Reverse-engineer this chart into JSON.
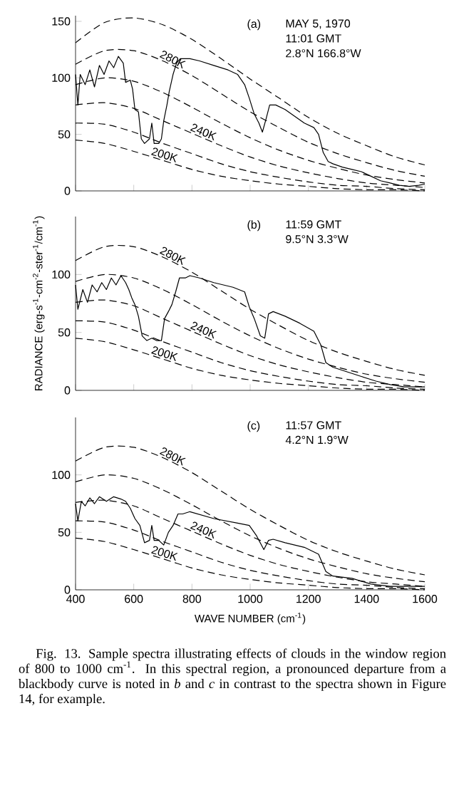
{
  "chart_data": [
    {
      "type": "line",
      "xlim": [
        400,
        1600
      ],
      "xticks": [
        400,
        600,
        800,
        1000,
        1200,
        1400,
        1600
      ],
      "ylim": [
        0,
        155
      ],
      "yticks": [
        0,
        50,
        100,
        150
      ],
      "tick_labels": "y",
      "annotations": [
        "(a)",
        "MAY 5, 1970",
        "11:01 GMT",
        "2.8°N   166.8°W"
      ],
      "x": [
        400,
        500,
        600,
        700,
        800,
        900,
        1000,
        1100,
        1200,
        1300,
        1400,
        1500,
        1600
      ],
      "series": [
        {
          "color": "#000000",
          "line_style": "solid",
          "x": [
            400,
            408,
            416,
            433,
            449,
            465,
            482,
            498,
            515,
            531,
            547,
            564,
            572,
            588,
            596,
            604,
            616,
            626,
            637,
            654,
            662,
            670,
            686,
            695,
            703,
            714,
            722,
            735,
            747,
            760,
            793,
            826,
            875,
            924,
            957,
            981,
            997,
            1014,
            1030,
            1042,
            1055,
            1067,
            1088,
            1120,
            1153,
            1186,
            1219,
            1235,
            1243,
            1251,
            1268,
            1284,
            1317,
            1350,
            1382,
            1415,
            1448,
            1481,
            1513,
            1546,
            1579,
            1600
          ],
          "values": [
            103,
            76,
            103,
            94,
            107,
            92,
            111,
            103,
            115,
            109,
            119,
            113,
            96,
            98,
            90,
            72,
            70,
            46,
            42,
            46,
            60,
            42,
            42,
            46,
            62,
            76,
            88,
            103,
            113,
            117,
            117,
            115,
            111,
            107,
            103,
            94,
            82,
            68,
            60,
            52,
            64,
            76,
            76,
            72,
            66,
            60,
            56,
            50,
            42,
            34,
            26,
            24,
            21,
            19,
            17,
            13,
            9,
            7,
            5,
            4,
            5,
            6
          ]
        },
        {
          "color": "#000000",
          "line_style": "dashed",
          "values": [
            131,
            149,
            153,
            147,
            134,
            117,
            99,
            82,
            65,
            51,
            40,
            30,
            23
          ]
        },
        {
          "name": "280K",
          "color": "#000000",
          "line_style": "dashed",
          "values": [
            112,
            124,
            124,
            115,
            102,
            86,
            70,
            56,
            43,
            33,
            25,
            18,
            13
          ]
        },
        {
          "color": "#000000",
          "line_style": "dashed",
          "values": [
            94,
            100,
            97,
            87,
            74,
            60,
            47,
            36,
            27,
            20,
            14,
            10,
            7
          ]
        },
        {
          "name": "240K",
          "color": "#000000",
          "line_style": "dashed",
          "values": [
            76,
            78,
            73,
            62,
            51,
            40,
            30,
            22,
            16,
            11,
            7,
            5,
            3
          ]
        },
        {
          "color": "#000000",
          "line_style": "dashed",
          "values": [
            60,
            59,
            52,
            42,
            33,
            24,
            17,
            12,
            8,
            5,
            4,
            2,
            1
          ]
        },
        {
          "name": "200K",
          "color": "#000000",
          "line_style": "dashed",
          "values": [
            45,
            42,
            35,
            27,
            19,
            13,
            9,
            6,
            4,
            2,
            1,
            1,
            0
          ]
        }
      ]
    },
    {
      "type": "line",
      "xlim": [
        400,
        1600
      ],
      "xticks": [
        400,
        600,
        800,
        1000,
        1200,
        1400,
        1600
      ],
      "ylim": [
        0,
        150
      ],
      "yticks": [
        0,
        50,
        100
      ],
      "tick_labels": "y",
      "ylabel": "RADIANCE (erg-s$^{-1}$-cm$^{-2}$-ster$^{-1}$/cm$^{-1}$)",
      "annotations": [
        "(b)",
        "11:59 GMT",
        "9.5°N   3.3°W"
      ],
      "x": [
        400,
        500,
        600,
        700,
        800,
        900,
        1000,
        1100,
        1200,
        1300,
        1400,
        1500,
        1600
      ],
      "series": [
        {
          "color": "#000000",
          "line_style": "solid",
          "x": [
            400,
            408,
            425,
            441,
            457,
            474,
            490,
            506,
            523,
            539,
            556,
            572,
            583,
            593,
            604,
            616,
            629,
            645,
            662,
            678,
            695,
            706,
            719,
            731,
            744,
            757,
            777,
            793,
            826,
            875,
            941,
            981,
            997,
            1014,
            1035,
            1050,
            1063,
            1079,
            1120,
            1170,
            1219,
            1243,
            1260,
            1284,
            1333,
            1382,
            1432,
            1481,
            1530,
            1600
          ],
          "values": [
            91,
            70,
            87,
            76,
            91,
            85,
            93,
            87,
            97,
            91,
            99,
            93,
            87,
            80,
            74,
            64,
            47,
            43,
            45,
            43,
            43,
            62,
            68,
            74,
            85,
            97,
            97,
            99,
            97,
            93,
            89,
            85,
            72,
            62,
            47,
            45,
            66,
            68,
            64,
            58,
            51,
            39,
            24,
            20,
            16,
            12,
            8,
            5,
            3,
            3
          ]
        },
        {
          "name": "280K",
          "color": "#000000",
          "line_style": "dashed",
          "values": [
            112,
            124,
            124,
            115,
            102,
            86,
            70,
            56,
            43,
            33,
            25,
            18,
            13
          ]
        },
        {
          "color": "#000000",
          "line_style": "dashed",
          "values": [
            94,
            100,
            97,
            87,
            74,
            60,
            47,
            36,
            27,
            20,
            14,
            10,
            7
          ]
        },
        {
          "name": "240K",
          "color": "#000000",
          "line_style": "dashed",
          "values": [
            76,
            78,
            73,
            62,
            51,
            40,
            30,
            22,
            16,
            11,
            7,
            5,
            3
          ]
        },
        {
          "color": "#000000",
          "line_style": "dashed",
          "values": [
            60,
            59,
            52,
            42,
            33,
            24,
            17,
            12,
            8,
            5,
            4,
            2,
            1
          ]
        },
        {
          "name": "200K",
          "color": "#000000",
          "line_style": "dashed",
          "values": [
            45,
            42,
            35,
            27,
            19,
            13,
            9,
            6,
            4,
            2,
            1,
            1,
            0
          ]
        }
      ]
    },
    {
      "type": "line",
      "xlim": [
        400,
        1600
      ],
      "xticks": [
        400,
        600,
        800,
        1000,
        1200,
        1400,
        1600
      ],
      "ylim": [
        0,
        150
      ],
      "yticks": [
        0,
        50,
        100
      ],
      "xlabel": "WAVE NUMBER (cm$^{-1}$)",
      "annotations": [
        "(c)",
        "11:57 GMT",
        "4.2°N   1.9°W",
        "Fig. 13.  Sample spectra illustrating effects of clouds in the window region of 800 to 1000 cm$^{-1}$. In this spectral region, a pronounced departure from a blackbody curve is noted in *b* and *c* in contrast to the spectra shown in Figure 14, for example."
      ],
      "x": [
        400,
        500,
        600,
        700,
        800,
        900,
        1000,
        1100,
        1200,
        1300,
        1400,
        1500,
        1600
      ],
      "series": [
        {
          "color": "#000000",
          "line_style": "solid",
          "x": [
            400,
            408,
            420,
            433,
            449,
            465,
            482,
            506,
            531,
            556,
            572,
            588,
            604,
            621,
            637,
            654,
            662,
            670,
            686,
            703,
            719,
            735,
            752,
            768,
            793,
            875,
            957,
            997,
            1022,
            1047,
            1063,
            1079,
            1120,
            1186,
            1235,
            1260,
            1284,
            1350,
            1415,
            1481,
            1530,
            1600
          ],
          "values": [
            75,
            60,
            77,
            73,
            80,
            75,
            81,
            77,
            81,
            79,
            77,
            71,
            62,
            56,
            41,
            43,
            56,
            43,
            43,
            39,
            50,
            56,
            66,
            66,
            68,
            62,
            58,
            56,
            47,
            35,
            43,
            44,
            41,
            37,
            31,
            16,
            12,
            10,
            5,
            3,
            3,
            3
          ]
        },
        {
          "name": "280K",
          "color": "#000000",
          "line_style": "dashed",
          "values": [
            112,
            124,
            124,
            115,
            102,
            86,
            70,
            56,
            43,
            33,
            25,
            18,
            13
          ]
        },
        {
          "color": "#000000",
          "line_style": "dashed",
          "values": [
            94,
            100,
            97,
            87,
            74,
            60,
            47,
            36,
            27,
            20,
            14,
            10,
            7
          ]
        },
        {
          "name": "240K",
          "color": "#000000",
          "line_style": "dashed",
          "values": [
            76,
            78,
            73,
            62,
            51,
            40,
            30,
            22,
            16,
            11,
            7,
            5,
            3
          ]
        },
        {
          "color": "#000000",
          "line_style": "dashed",
          "values": [
            60,
            59,
            52,
            42,
            33,
            24,
            17,
            12,
            8,
            5,
            4,
            2,
            1
          ]
        },
        {
          "name": "200K",
          "color": "#000000",
          "line_style": "dashed",
          "values": [
            45,
            42,
            35,
            27,
            19,
            13,
            9,
            6,
            4,
            2,
            1,
            1,
            0
          ]
        }
      ]
    }
  ]
}
